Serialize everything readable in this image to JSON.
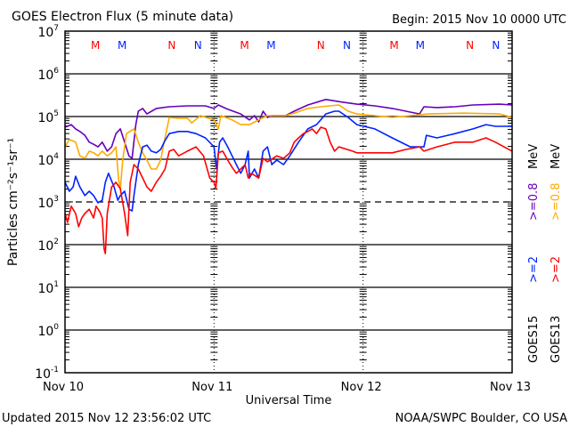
{
  "chart_data": {
    "type": "line",
    "title": "GOES Electron Flux (5 minute data)",
    "begin_label": "Begin: 2015 Nov 10 0000 UTC",
    "xlabel": "Universal Time",
    "ylabel": "Particles cm⁻²s⁻¹sr⁻¹",
    "x_unit": "hours since 2015 Nov 10 0000 UTC",
    "xlim": [
      0,
      72
    ],
    "x_ticks": [
      {
        "h": 0,
        "label": "Nov 10"
      },
      {
        "h": 24,
        "label": "Nov 11"
      },
      {
        "h": 48,
        "label": "Nov 12"
      },
      {
        "h": 72,
        "label": "Nov 13"
      }
    ],
    "y_scale": "log",
    "ylim_log10": [
      -1,
      7
    ],
    "y_ticks": [
      {
        "base": "10",
        "exp": "7"
      },
      {
        "base": "10",
        "exp": "6"
      },
      {
        "base": "10",
        "exp": "5"
      },
      {
        "base": "10",
        "exp": "4"
      },
      {
        "base": "10",
        "exp": "3"
      },
      {
        "base": "10",
        "exp": "2"
      },
      {
        "base": "10",
        "exp": "1"
      },
      {
        "base": "10",
        "exp": "0"
      },
      {
        "base": "10",
        "exp": "-1"
      }
    ],
    "hlines": [
      {
        "log": 6,
        "style": "solid"
      },
      {
        "log": 5,
        "style": "solid"
      },
      {
        "log": 4,
        "style": "solid"
      },
      {
        "log": 3,
        "style": "dashed"
      },
      {
        "log": 2,
        "style": "solid"
      },
      {
        "log": 1,
        "style": "solid"
      },
      {
        "log": 0,
        "style": "solid"
      }
    ],
    "markers": [
      {
        "h": 4.9,
        "label": "M",
        "color": "#ff0000"
      },
      {
        "h": 9.2,
        "label": "M",
        "color": "#0022ff"
      },
      {
        "h": 17.2,
        "label": "N",
        "color": "#ff0000"
      },
      {
        "h": 21.4,
        "label": "N",
        "color": "#0022ff"
      },
      {
        "h": 28.9,
        "label": "M",
        "color": "#ff0000"
      },
      {
        "h": 33.2,
        "label": "M",
        "color": "#0022ff"
      },
      {
        "h": 41.2,
        "label": "N",
        "color": "#ff0000"
      },
      {
        "h": 45.4,
        "label": "N",
        "color": "#0022ff"
      },
      {
        "h": 53.0,
        "label": "M",
        "color": "#ff0000"
      },
      {
        "h": 57.2,
        "label": "M",
        "color": "#0022ff"
      },
      {
        "h": 65.2,
        "label": "N",
        "color": "#ff0000"
      },
      {
        "h": 69.4,
        "label": "N",
        "color": "#0022ff"
      }
    ],
    "legend": {
      "placement": "right",
      "groups": [
        {
          "satellite": "GOES15",
          "items": [
            {
              "label": ">=2",
              "color": "#0022ff"
            },
            {
              "label": ">=0.8",
              "color": "#6600bb"
            }
          ],
          "unit": "MeV"
        },
        {
          "satellite": "GOES13",
          "items": [
            {
              "label": ">=2",
              "color": "#ff0000"
            },
            {
              "label": ">=0.8",
              "color": "#ffaa00"
            }
          ],
          "unit": "MeV"
        }
      ]
    },
    "series": [
      {
        "name": "GOES15 >=0.8 MeV",
        "color": "#6600bb",
        "points_log10": [
          [
            0,
            4.75
          ],
          [
            1.0,
            4.81
          ],
          [
            1.7,
            4.71
          ],
          [
            2.4,
            4.65
          ],
          [
            3.2,
            4.56
          ],
          [
            3.9,
            4.4
          ],
          [
            4.6,
            4.35
          ],
          [
            5.3,
            4.29
          ],
          [
            6.0,
            4.4
          ],
          [
            6.8,
            4.19
          ],
          [
            7.5,
            4.29
          ],
          [
            8.2,
            4.6
          ],
          [
            8.9,
            4.71
          ],
          [
            9.6,
            4.4
          ],
          [
            10.3,
            4.08
          ],
          [
            10.8,
            4.02
          ],
          [
            11.4,
            4.81
          ],
          [
            11.8,
            5.125
          ],
          [
            12.5,
            5.19
          ],
          [
            13.2,
            5.06
          ],
          [
            14.7,
            5.19
          ],
          [
            16.8,
            5.23
          ],
          [
            19.7,
            5.25
          ],
          [
            22.6,
            5.25
          ],
          [
            24.0,
            5.19
          ],
          [
            24.7,
            5.27
          ],
          [
            26.2,
            5.17
          ],
          [
            28.3,
            5.06
          ],
          [
            29.7,
            4.92
          ],
          [
            30.5,
            5.02
          ],
          [
            31.2,
            4.875
          ],
          [
            31.9,
            5.125
          ],
          [
            32.6,
            4.98
          ],
          [
            33.3,
            5.02
          ],
          [
            35.5,
            5.02
          ],
          [
            36.9,
            5.125
          ],
          [
            39.1,
            5.27
          ],
          [
            42.0,
            5.4
          ],
          [
            44.1,
            5.35
          ],
          [
            47.0,
            5.29
          ],
          [
            49.9,
            5.25
          ],
          [
            52.7,
            5.19
          ],
          [
            54.9,
            5.125
          ],
          [
            57.1,
            5.06
          ],
          [
            57.8,
            5.23
          ],
          [
            59.9,
            5.21
          ],
          [
            62.8,
            5.23
          ],
          [
            65.7,
            5.27
          ],
          [
            70.0,
            5.29
          ],
          [
            72.0,
            5.27
          ]
        ]
      },
      {
        "name": "GOES13 >=0.8 MeV",
        "color": "#ffaa00",
        "points_log10": [
          [
            0,
            4.29
          ],
          [
            0.7,
            4.46
          ],
          [
            1.7,
            4.4
          ],
          [
            2.4,
            4.08
          ],
          [
            3.2,
            4.02
          ],
          [
            3.9,
            4.19
          ],
          [
            4.6,
            4.15
          ],
          [
            5.3,
            4.08
          ],
          [
            6.0,
            4.19
          ],
          [
            6.8,
            4.08
          ],
          [
            7.5,
            4.15
          ],
          [
            8.2,
            4.29
          ],
          [
            8.6,
            3.56
          ],
          [
            8.9,
            3.29
          ],
          [
            9.3,
            3.98
          ],
          [
            9.9,
            4.6
          ],
          [
            11.1,
            4.71
          ],
          [
            11.8,
            4.4
          ],
          [
            12.5,
            4.15
          ],
          [
            13.2,
            3.98
          ],
          [
            13.9,
            3.77
          ],
          [
            14.7,
            3.77
          ],
          [
            15.4,
            3.98
          ],
          [
            16.1,
            4.5
          ],
          [
            16.8,
            4.98
          ],
          [
            18.3,
            4.96
          ],
          [
            19.7,
            4.96
          ],
          [
            20.4,
            4.85
          ],
          [
            21.8,
            5.02
          ],
          [
            24.0,
            4.92
          ],
          [
            24.7,
            4.71
          ],
          [
            25.1,
            5.02
          ],
          [
            26.9,
            4.92
          ],
          [
            28.3,
            4.81
          ],
          [
            29.7,
            4.81
          ],
          [
            31.2,
            4.92
          ],
          [
            32.6,
            5.02
          ],
          [
            35.5,
            5.02
          ],
          [
            36.9,
            5.08
          ],
          [
            39.1,
            5.19
          ],
          [
            41.2,
            5.23
          ],
          [
            44.1,
            5.27
          ],
          [
            45.6,
            5.125
          ],
          [
            47.0,
            5.06
          ],
          [
            49.9,
            5.02
          ],
          [
            52.7,
            4.98
          ],
          [
            54.2,
            5.0
          ],
          [
            55.6,
            5.02
          ],
          [
            58.5,
            5.06
          ],
          [
            64.2,
            5.08
          ],
          [
            70.0,
            5.06
          ],
          [
            72.0,
            4.98
          ]
        ]
      },
      {
        "name": "GOES15 >=2 MeV",
        "color": "#0022ff",
        "points_log10": [
          [
            0,
            3.46
          ],
          [
            0.7,
            3.25
          ],
          [
            1.3,
            3.35
          ],
          [
            1.7,
            3.6
          ],
          [
            2.4,
            3.35
          ],
          [
            3.2,
            3.15
          ],
          [
            3.9,
            3.25
          ],
          [
            4.6,
            3.15
          ],
          [
            5.3,
            2.98
          ],
          [
            6.0,
            3.04
          ],
          [
            6.5,
            3.46
          ],
          [
            7.0,
            3.67
          ],
          [
            7.9,
            3.35
          ],
          [
            8.5,
            3.04
          ],
          [
            8.9,
            3.15
          ],
          [
            9.6,
            3.25
          ],
          [
            10.3,
            2.83
          ],
          [
            10.8,
            2.79
          ],
          [
            11.1,
            3.15
          ],
          [
            11.8,
            3.875
          ],
          [
            12.5,
            4.29
          ],
          [
            13.2,
            4.33
          ],
          [
            13.9,
            4.19
          ],
          [
            14.7,
            4.15
          ],
          [
            15.4,
            4.23
          ],
          [
            16.1,
            4.44
          ],
          [
            16.8,
            4.6
          ],
          [
            18.3,
            4.65
          ],
          [
            19.7,
            4.65
          ],
          [
            21.1,
            4.6
          ],
          [
            22.6,
            4.5
          ],
          [
            24.0,
            4.29
          ],
          [
            24.4,
            3.77
          ],
          [
            24.9,
            4.4
          ],
          [
            25.4,
            4.5
          ],
          [
            26.2,
            4.29
          ],
          [
            26.9,
            4.08
          ],
          [
            27.6,
            3.875
          ],
          [
            28.3,
            3.67
          ],
          [
            29.0,
            3.875
          ],
          [
            29.5,
            4.19
          ],
          [
            29.7,
            3.56
          ],
          [
            30.5,
            3.77
          ],
          [
            31.2,
            3.56
          ],
          [
            31.9,
            4.19
          ],
          [
            32.6,
            4.29
          ],
          [
            33.3,
            3.875
          ],
          [
            34.1,
            3.98
          ],
          [
            35.2,
            3.875
          ],
          [
            36.2,
            4.08
          ],
          [
            37.6,
            4.4
          ],
          [
            39.1,
            4.71
          ],
          [
            40.5,
            4.81
          ],
          [
            42.0,
            5.06
          ],
          [
            43.4,
            5.125
          ],
          [
            44.1,
            5.125
          ],
          [
            45.6,
            4.98
          ],
          [
            47.0,
            4.81
          ],
          [
            49.9,
            4.71
          ],
          [
            52.7,
            4.5
          ],
          [
            55.6,
            4.29
          ],
          [
            57.8,
            4.29
          ],
          [
            58.2,
            4.56
          ],
          [
            59.9,
            4.5
          ],
          [
            62.8,
            4.6
          ],
          [
            65.7,
            4.71
          ],
          [
            67.8,
            4.81
          ],
          [
            69.3,
            4.77
          ],
          [
            72.0,
            4.77
          ]
        ]
      },
      {
        "name": "GOES13 >=2 MeV",
        "color": "#ff0000",
        "points_log10": [
          [
            0,
            2.73
          ],
          [
            0.4,
            2.52
          ],
          [
            1.0,
            2.9
          ],
          [
            1.7,
            2.73
          ],
          [
            2.2,
            2.42
          ],
          [
            2.7,
            2.625
          ],
          [
            3.2,
            2.73
          ],
          [
            3.9,
            2.83
          ],
          [
            4.6,
            2.625
          ],
          [
            5.0,
            2.9
          ],
          [
            5.6,
            2.77
          ],
          [
            6.0,
            2.625
          ],
          [
            6.3,
            1.9
          ],
          [
            6.5,
            1.79
          ],
          [
            6.8,
            2.73
          ],
          [
            7.5,
            3.35
          ],
          [
            8.2,
            3.46
          ],
          [
            8.9,
            3.31
          ],
          [
            9.6,
            2.73
          ],
          [
            10.1,
            2.21
          ],
          [
            10.5,
            3.46
          ],
          [
            11.1,
            3.875
          ],
          [
            11.8,
            3.77
          ],
          [
            12.5,
            3.56
          ],
          [
            13.2,
            3.35
          ],
          [
            13.9,
            3.25
          ],
          [
            14.7,
            3.46
          ],
          [
            15.4,
            3.6
          ],
          [
            16.1,
            3.77
          ],
          [
            16.8,
            4.19
          ],
          [
            17.5,
            4.23
          ],
          [
            18.3,
            4.08
          ],
          [
            19.7,
            4.19
          ],
          [
            21.1,
            4.29
          ],
          [
            22.3,
            4.08
          ],
          [
            23.3,
            3.56
          ],
          [
            24.0,
            3.46
          ],
          [
            24.3,
            3.31
          ],
          [
            24.7,
            4.15
          ],
          [
            25.4,
            4.19
          ],
          [
            26.2,
            3.98
          ],
          [
            26.9,
            3.81
          ],
          [
            27.6,
            3.67
          ],
          [
            28.3,
            3.77
          ],
          [
            29.0,
            3.875
          ],
          [
            29.5,
            3.56
          ],
          [
            30.0,
            3.67
          ],
          [
            31.2,
            3.56
          ],
          [
            31.9,
            4.02
          ],
          [
            32.6,
            3.94
          ],
          [
            34.1,
            4.08
          ],
          [
            35.2,
            4.02
          ],
          [
            36.2,
            4.15
          ],
          [
            36.9,
            4.4
          ],
          [
            37.6,
            4.5
          ],
          [
            38.4,
            4.6
          ],
          [
            39.1,
            4.65
          ],
          [
            39.8,
            4.71
          ],
          [
            40.5,
            4.6
          ],
          [
            41.2,
            4.75
          ],
          [
            42.0,
            4.71
          ],
          [
            42.7,
            4.4
          ],
          [
            43.4,
            4.19
          ],
          [
            44.1,
            4.29
          ],
          [
            46.3,
            4.19
          ],
          [
            47.0,
            4.15
          ],
          [
            49.9,
            4.15
          ],
          [
            52.7,
            4.15
          ],
          [
            54.9,
            4.23
          ],
          [
            57.1,
            4.29
          ],
          [
            57.8,
            4.19
          ],
          [
            59.9,
            4.29
          ],
          [
            62.8,
            4.4
          ],
          [
            65.7,
            4.4
          ],
          [
            67.8,
            4.5
          ],
          [
            69.3,
            4.4
          ],
          [
            70.7,
            4.29
          ],
          [
            72.0,
            4.19
          ]
        ]
      }
    ]
  },
  "footer": {
    "updated": "Updated 2015 Nov 12 23:56:02 UTC",
    "credit": "NOAA/SWPC Boulder, CO USA"
  }
}
